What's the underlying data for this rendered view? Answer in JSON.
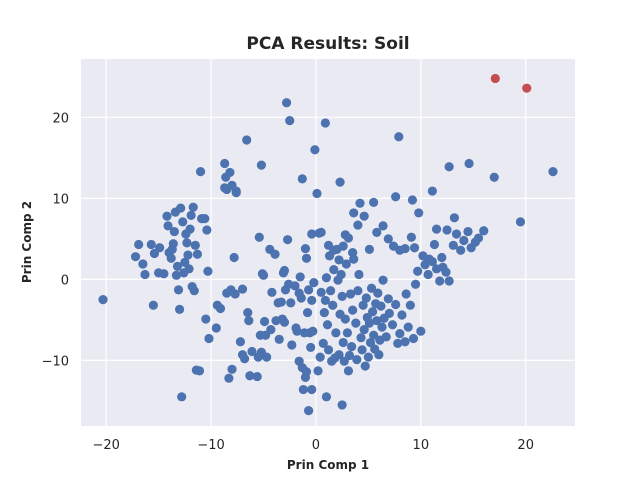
{
  "chart_data": {
    "type": "scatter",
    "title": "PCA Results: Soil",
    "xlabel": "Prin Comp 1",
    "ylabel": "Prin Comp 2",
    "xlim": [
      -22.4,
      24.7
    ],
    "ylim": [
      -18.1,
      27.2
    ],
    "xticks": [
      -20,
      -10,
      0,
      10,
      20
    ],
    "yticks": [
      -10,
      0,
      10,
      20
    ],
    "xtick_labels": [
      "−20",
      "−10",
      "0",
      "10",
      "20"
    ],
    "ytick_labels": [
      "−10",
      "0",
      "10",
      "20"
    ],
    "grid": true,
    "background": "#eaeaf2",
    "series": [
      {
        "color": "#4c72b0",
        "points": [
          [
            -20.3,
            -2.5
          ],
          [
            -17.2,
            2.8
          ],
          [
            -16.9,
            4.3
          ],
          [
            -16.3,
            0.6
          ],
          [
            -16.5,
            1.9
          ],
          [
            -15.7,
            4.3
          ],
          [
            -15.4,
            3.2
          ],
          [
            -15.5,
            -3.2
          ],
          [
            -15.0,
            0.8
          ],
          [
            -14.9,
            3.9
          ],
          [
            -14.5,
            0.7
          ],
          [
            -14.2,
            7.8
          ],
          [
            -14.1,
            6.6
          ],
          [
            -14.0,
            3.3
          ],
          [
            -13.8,
            2.6
          ],
          [
            -13.7,
            3.7
          ],
          [
            -13.6,
            4.4
          ],
          [
            -13.5,
            5.9
          ],
          [
            -13.4,
            8.3
          ],
          [
            -13.3,
            0.5
          ],
          [
            -13.2,
            1.6
          ],
          [
            -13.1,
            -1.3
          ],
          [
            -13.0,
            -3.7
          ],
          [
            -12.9,
            8.8
          ],
          [
            -12.7,
            7.1
          ],
          [
            -12.6,
            0.8
          ],
          [
            -12.5,
            2.1
          ],
          [
            -12.4,
            5.6
          ],
          [
            -12.3,
            4.5
          ],
          [
            -12.2,
            3.0
          ],
          [
            -12.1,
            1.3
          ],
          [
            -12.0,
            6.2
          ],
          [
            -11.9,
            7.9
          ],
          [
            -11.7,
            8.9
          ],
          [
            -11.8,
            -0.9
          ],
          [
            -11.6,
            -1.4
          ],
          [
            -11.5,
            4.2
          ],
          [
            -11.3,
            3.1
          ],
          [
            -11.0,
            13.3
          ],
          [
            -11.1,
            -11.3
          ],
          [
            -12.8,
            -14.5
          ],
          [
            -10.6,
            7.5
          ],
          [
            -10.4,
            6.1
          ],
          [
            -10.3,
            1.0
          ],
          [
            -10.2,
            -7.3
          ],
          [
            -9.5,
            -6.0
          ],
          [
            -9.1,
            -3.6
          ],
          [
            -8.7,
            14.3
          ],
          [
            -8.6,
            12.6
          ],
          [
            -8.5,
            11.1
          ],
          [
            -8.2,
            13.2
          ],
          [
            -8.0,
            11.6
          ],
          [
            -7.6,
            10.9
          ],
          [
            -8.0,
            -11.1
          ],
          [
            -8.3,
            -12.2
          ],
          [
            -8.5,
            -1.7
          ],
          [
            -8.1,
            -1.3
          ],
          [
            -7.8,
            2.7
          ],
          [
            -7.2,
            -7.7
          ],
          [
            -7.0,
            -1.2
          ],
          [
            -6.6,
            17.2
          ],
          [
            -6.8,
            -9.8
          ],
          [
            -6.4,
            -5.1
          ],
          [
            -6.1,
            -8.9
          ],
          [
            -6.3,
            -11.9
          ],
          [
            -5.6,
            -12.0
          ],
          [
            -5.4,
            5.2
          ],
          [
            -5.3,
            -6.9
          ],
          [
            -5.2,
            -9.0
          ],
          [
            -5.1,
            0.7
          ],
          [
            -5.0,
            0.5
          ],
          [
            -4.8,
            -6.9
          ],
          [
            -4.7,
            -9.6
          ],
          [
            -4.4,
            3.7
          ],
          [
            -4.3,
            -6.2
          ],
          [
            -4.2,
            -1.6
          ],
          [
            -3.9,
            3.1
          ],
          [
            -3.8,
            -5.1
          ],
          [
            -3.5,
            -7.4
          ],
          [
            -3.2,
            -4.9
          ],
          [
            -3.0,
            -5.3
          ],
          [
            -3.3,
            -2.8
          ],
          [
            -3.1,
            0.8
          ],
          [
            -3.0,
            1.1
          ],
          [
            -2.9,
            -1.3
          ],
          [
            -2.5,
            19.6
          ],
          [
            -2.8,
            21.8
          ],
          [
            -2.7,
            4.9
          ],
          [
            -2.6,
            -0.6
          ],
          [
            -2.4,
            -2.9
          ],
          [
            -2.3,
            -8.1
          ],
          [
            -1.9,
            -6.0
          ],
          [
            -1.8,
            -6.4
          ],
          [
            -1.6,
            -1.7
          ],
          [
            -1.5,
            0.3
          ],
          [
            -1.4,
            -2.3
          ],
          [
            -1.3,
            -10.9
          ],
          [
            -1.2,
            -13.6
          ],
          [
            -1.0,
            -12.1
          ],
          [
            -1.1,
            -6.6
          ],
          [
            -0.9,
            2.6
          ],
          [
            -0.8,
            -4.1
          ],
          [
            -0.7,
            -1.3
          ],
          [
            -0.6,
            -6.6
          ],
          [
            -0.5,
            -8.4
          ],
          [
            -0.4,
            -2.6
          ],
          [
            -0.3,
            -6.4
          ],
          [
            -0.2,
            -0.4
          ],
          [
            -0.1,
            16.0
          ],
          [
            -0.7,
            -16.2
          ],
          [
            -1.3,
            12.4
          ],
          [
            -0.4,
            -13.6
          ],
          [
            0.2,
            -11.3
          ],
          [
            0.3,
            5.7
          ],
          [
            0.4,
            -9.6
          ],
          [
            0.5,
            -1.6
          ],
          [
            0.7,
            -7.9
          ],
          [
            0.8,
            -4.1
          ],
          [
            0.9,
            -2.6
          ],
          [
            1.0,
            0.2
          ],
          [
            1.1,
            -5.6
          ],
          [
            1.2,
            -8.7
          ],
          [
            1.3,
            2.9
          ],
          [
            1.4,
            -1.4
          ],
          [
            1.5,
            -10.1
          ],
          [
            1.6,
            -3.2
          ],
          [
            1.7,
            1.2
          ],
          [
            1.8,
            -9.7
          ],
          [
            1.9,
            -6.6
          ],
          [
            2.0,
            3.7
          ],
          [
            2.1,
            -0.1
          ],
          [
            2.2,
            -9.3
          ],
          [
            2.3,
            -4.3
          ],
          [
            2.4,
            0.6
          ],
          [
            2.5,
            -2.1
          ],
          [
            2.6,
            -7.8
          ],
          [
            2.7,
            -10.1
          ],
          [
            2.8,
            -4.9
          ],
          [
            2.9,
            1.9
          ],
          [
            3.0,
            -6.6
          ],
          [
            3.2,
            -9.4
          ],
          [
            3.3,
            -1.8
          ],
          [
            3.4,
            -8.3
          ],
          [
            3.5,
            -3.8
          ],
          [
            3.6,
            2.5
          ],
          [
            3.8,
            -5.4
          ],
          [
            3.9,
            -9.9
          ],
          [
            4.0,
            -1.4
          ],
          [
            4.1,
            0.6
          ],
          [
            4.3,
            -7.2
          ],
          [
            4.4,
            -8.7
          ],
          [
            4.5,
            -3.2
          ],
          [
            4.6,
            -6.2
          ],
          [
            4.7,
            -10.7
          ],
          [
            4.8,
            -2.3
          ],
          [
            4.9,
            -4.7
          ],
          [
            5.0,
            -9.6
          ],
          [
            5.1,
            -5.4
          ],
          [
            5.2,
            -7.8
          ],
          [
            5.3,
            -1.1
          ],
          [
            5.4,
            -4.0
          ],
          [
            5.5,
            -6.9
          ],
          [
            5.6,
            -8.6
          ],
          [
            5.7,
            -3.0
          ],
          [
            5.8,
            -5.1
          ],
          [
            5.9,
            -1.7
          ],
          [
            6.0,
            -9.3
          ],
          [
            6.1,
            -7.5
          ],
          [
            6.2,
            -3.3
          ],
          [
            6.3,
            -5.9
          ],
          [
            6.4,
            -0.1
          ],
          [
            6.5,
            -4.8
          ],
          [
            6.7,
            -7.1
          ],
          [
            6.9,
            -2.4
          ],
          [
            7.0,
            -4.2
          ],
          [
            7.3,
            -5.6
          ],
          [
            7.6,
            -3.1
          ],
          [
            7.8,
            -7.9
          ],
          [
            8.0,
            -6.7
          ],
          [
            8.2,
            -4.4
          ],
          [
            8.5,
            -7.7
          ],
          [
            8.6,
            -1.8
          ],
          [
            8.8,
            -5.9
          ],
          [
            9.0,
            -3.2
          ],
          [
            9.3,
            -7.3
          ],
          [
            9.5,
            -0.6
          ],
          [
            9.7,
            1.0
          ],
          [
            10.0,
            -6.4
          ],
          [
            10.4,
            1.8
          ],
          [
            10.7,
            0.6
          ],
          [
            11.1,
            2.2
          ],
          [
            11.5,
            1.3
          ],
          [
            11.8,
            -0.2
          ],
          [
            12.1,
            1.5
          ],
          [
            12.4,
            0.9
          ],
          [
            12.7,
            -0.2
          ],
          [
            13.1,
            4.2
          ],
          [
            13.4,
            5.6
          ],
          [
            13.8,
            3.6
          ],
          [
            14.1,
            4.8
          ],
          [
            14.5,
            5.9
          ],
          [
            14.8,
            3.9
          ],
          [
            15.2,
            4.6
          ],
          [
            15.5,
            5.1
          ],
          [
            16.0,
            6.0
          ],
          [
            0.9,
            19.3
          ],
          [
            7.9,
            17.6
          ],
          [
            12.7,
            13.9
          ],
          [
            14.6,
            14.3
          ],
          [
            17.0,
            12.6
          ],
          [
            22.6,
            13.3
          ],
          [
            19.5,
            7.1
          ],
          [
            11.1,
            10.9
          ],
          [
            2.3,
            12.0
          ],
          [
            -7.6,
            10.7
          ],
          [
            -5.2,
            14.1
          ],
          [
            -8.7,
            11.3
          ],
          [
            0.1,
            10.6
          ],
          [
            -10.9,
            7.5
          ],
          [
            2.8,
            5.5
          ],
          [
            3.6,
            8.2
          ],
          [
            4.2,
            9.4
          ],
          [
            5.5,
            9.5
          ],
          [
            7.6,
            10.2
          ],
          [
            9.2,
            9.8
          ],
          [
            9.8,
            8.2
          ],
          [
            11.5,
            6.2
          ],
          [
            12.5,
            6.1
          ],
          [
            13.2,
            7.6
          ],
          [
            4.0,
            6.7
          ],
          [
            4.6,
            7.8
          ],
          [
            5.1,
            3.7
          ],
          [
            5.8,
            5.8
          ],
          [
            6.4,
            6.6
          ],
          [
            6.9,
            5.0
          ],
          [
            7.4,
            4.1
          ],
          [
            8.0,
            3.6
          ],
          [
            8.5,
            3.8
          ],
          [
            9.1,
            5.2
          ],
          [
            9.4,
            3.9
          ],
          [
            10.2,
            2.9
          ],
          [
            10.8,
            2.5
          ],
          [
            11.3,
            4.3
          ],
          [
            12.0,
            2.7
          ],
          [
            0.5,
            5.8
          ],
          [
            1.2,
            4.2
          ],
          [
            1.7,
            3.6
          ],
          [
            2.2,
            2.4
          ],
          [
            2.6,
            4.1
          ],
          [
            3.1,
            5.1
          ],
          [
            3.5,
            3.3
          ],
          [
            -0.4,
            5.6
          ],
          [
            -1.0,
            3.8
          ],
          [
            -2.0,
            -0.8
          ],
          [
            -3.6,
            -2.9
          ],
          [
            -4.9,
            -5.2
          ],
          [
            -6.5,
            -4.1
          ],
          [
            -7.7,
            -1.8
          ],
          [
            -9.4,
            -3.2
          ],
          [
            -10.5,
            -4.9
          ],
          [
            -11.4,
            -11.2
          ],
          [
            -7.0,
            -9.3
          ],
          [
            -5.5,
            -9.6
          ],
          [
            -1.6,
            -10.1
          ],
          [
            -0.9,
            -11.4
          ],
          [
            2.5,
            -15.5
          ],
          [
            1.0,
            -14.5
          ],
          [
            3.1,
            -11.3
          ]
        ]
      },
      {
        "color": "#c44e52",
        "points": [
          [
            17.1,
            24.8
          ],
          [
            20.1,
            23.6
          ]
        ]
      }
    ]
  }
}
